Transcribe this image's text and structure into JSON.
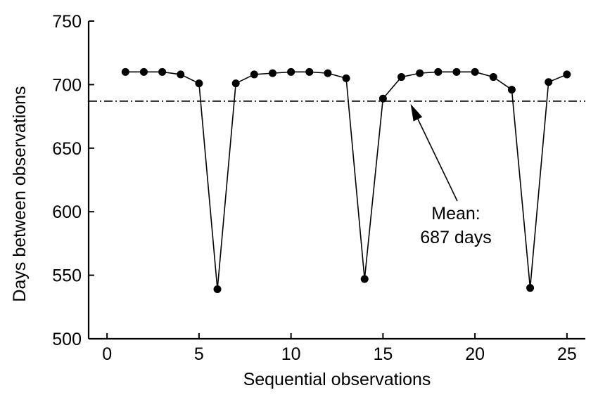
{
  "chart_data": {
    "type": "line",
    "title": "",
    "xlabel": "Sequential  observations",
    "ylabel": "Days between observations",
    "xlim": [
      -1,
      26
    ],
    "ylim": [
      500,
      750
    ],
    "x_ticks": [
      0,
      5,
      10,
      15,
      20,
      25
    ],
    "y_ticks": [
      500,
      550,
      600,
      650,
      700,
      750
    ],
    "x_tick_labels": [
      "0",
      "5",
      "10",
      "15",
      "20",
      "25"
    ],
    "y_tick_labels": [
      "500",
      "550",
      "600",
      "650",
      "700",
      "750"
    ],
    "grid": false,
    "series": [
      {
        "name": "Days between observations",
        "x": [
          1,
          2,
          3,
          4,
          5,
          6,
          7,
          8,
          9,
          10,
          11,
          12,
          13,
          14,
          15,
          16,
          17,
          18,
          19,
          20,
          21,
          22,
          23,
          24,
          25
        ],
        "values": [
          710,
          710,
          710,
          708,
          701,
          539,
          701,
          708,
          709,
          710,
          710,
          709,
          705,
          547,
          689,
          706,
          709,
          710,
          710,
          710,
          706,
          696,
          540,
          702,
          708
        ]
      }
    ],
    "mean": {
      "value": 687,
      "label_line1": "Mean:",
      "label_line2": "687 days",
      "arrow_target_x": 16.5
    }
  }
}
